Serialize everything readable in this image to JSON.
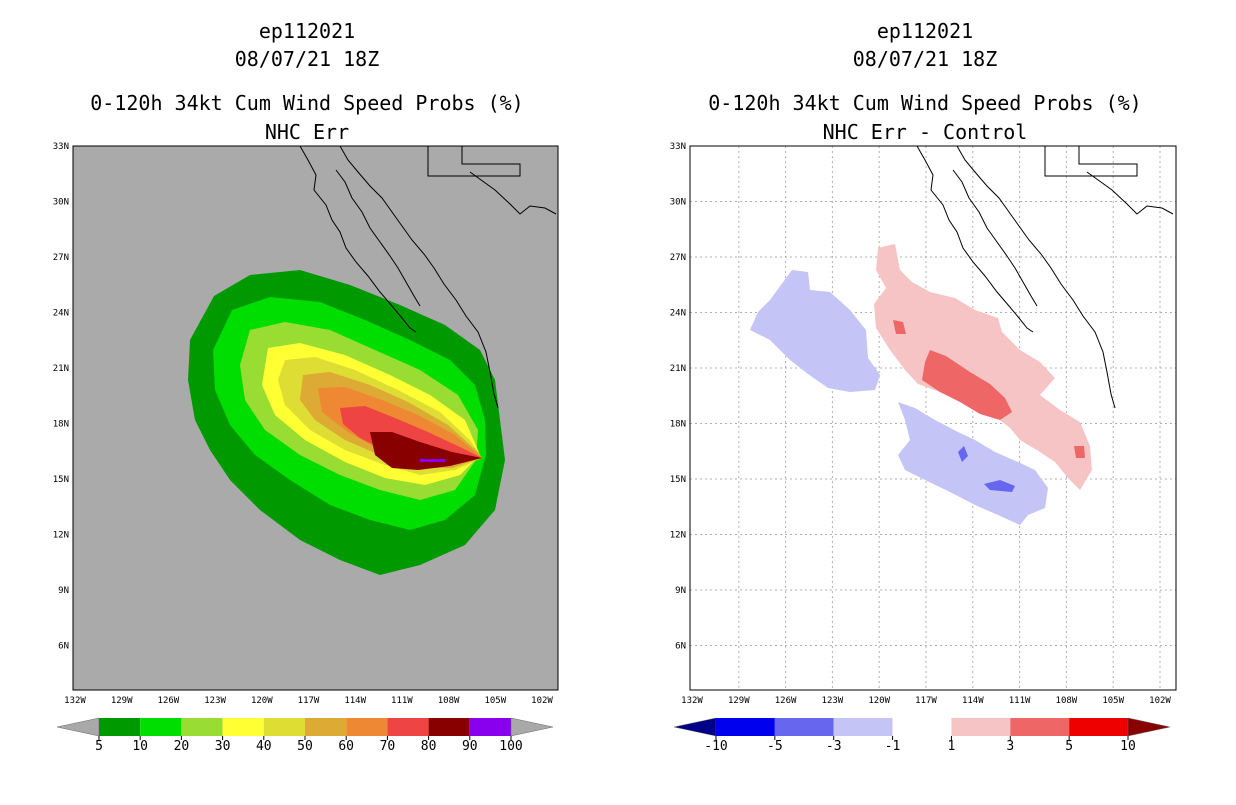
{
  "panels": [
    {
      "storm_id": "ep112021",
      "datetime": "08/07/21 18Z",
      "product": "0-120h 34kt Cum Wind Speed Probs (%)",
      "subtitle": "NHC Err",
      "colorbar": {
        "labels": [
          "5",
          "10",
          "20",
          "30",
          "40",
          "50",
          "60",
          "70",
          "80",
          "90",
          "100"
        ],
        "colors": [
          "#a9a9a9",
          "#009900",
          "#00dd00",
          "#99dd33",
          "#ffff33",
          "#dddd33",
          "#ddaa33",
          "#ee8833",
          "#ee4444",
          "#880000",
          "#8800ee",
          "#a9a9a9"
        ]
      }
    },
    {
      "storm_id": "ep112021",
      "datetime": "08/07/21 18Z",
      "product": "0-120h 34kt Cum Wind Speed Probs (%)",
      "subtitle": "NHC Err - Control",
      "colorbar": {
        "labels": [
          "-10",
          "-5",
          "-3",
          "-1",
          "1",
          "3",
          "5",
          "10"
        ],
        "colors": [
          "#000088",
          "#0000ee",
          "#6666ee",
          "#c4c4f6",
          "#ffffff",
          "#f6c4c4",
          "#ee6666",
          "#ee0000",
          "#880000"
        ]
      }
    }
  ],
  "axes": {
    "lat_labels": [
      "33N",
      "30N",
      "27N",
      "24N",
      "21N",
      "18N",
      "15N",
      "12N",
      "9N",
      "6N"
    ],
    "lon_labels": [
      "132W",
      "129W",
      "126W",
      "123W",
      "120W",
      "117W",
      "114W",
      "111W",
      "108W",
      "105W",
      "102W"
    ]
  },
  "colors": {
    "land": "#aaaaaa",
    "coast": "#000000",
    "grid": "#b0b0b0",
    "bg": "#ffffff"
  }
}
